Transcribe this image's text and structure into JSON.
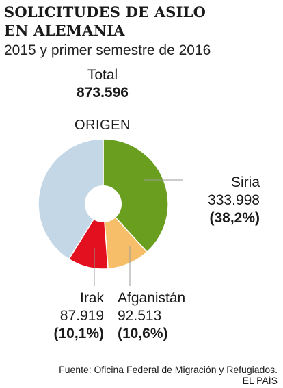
{
  "header": {
    "title_line1": "SOLICITUDES DE ASILO",
    "title_line2": "EN ALEMANIA",
    "subtitle": "2015 y primer semestre de 2016"
  },
  "total": {
    "label": "Total",
    "value": "873.596"
  },
  "origin_label": "ORIGEN",
  "chart_data": {
    "type": "pie",
    "title": "SOLICITUDES DE ASILO EN ALEMANIA",
    "subtitle": "2015 y primer semestre de 2016",
    "total": 873596,
    "donut": true,
    "slices": [
      {
        "name": "Siria",
        "value": 333998,
        "value_label": "333.998",
        "percent_label": "(38,2%)",
        "color": "#6a9e1f"
      },
      {
        "name": "Afganistán",
        "value": 92513,
        "value_label": "92.513",
        "percent_label": "(10,6%)",
        "color": "#f6be69"
      },
      {
        "name": "Irak",
        "value": 87919,
        "value_label": "87.919",
        "percent_label": "(10,1%)",
        "color": "#e3101f"
      },
      {
        "name": "",
        "value": 359166,
        "value_label": "",
        "percent_label": "",
        "color": "#c4d7e7"
      }
    ]
  },
  "footer": {
    "source": "Fuente: Oficina Federal de Migración y Refugiados.",
    "brand": "EL PAÍS"
  }
}
